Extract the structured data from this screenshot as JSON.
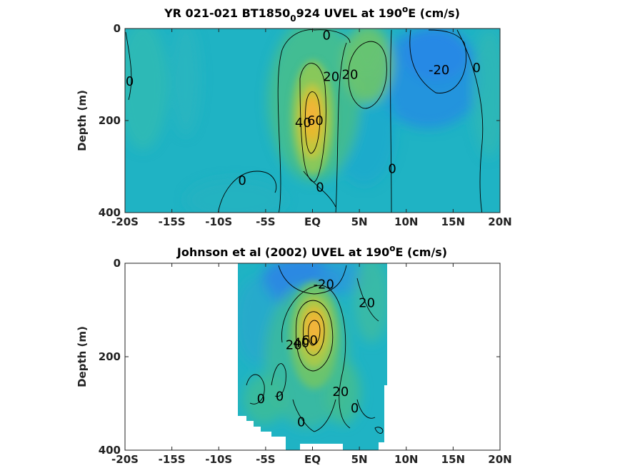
{
  "chart_data": [
    {
      "type": "contour",
      "title_main": "YR 021-021 BT1850",
      "title_sub": "0",
      "title_rest": "924 UVEL at 190",
      "title_sup": "o",
      "title_end": "E (cm/s)",
      "xlabel": "",
      "ylabel": "Depth (m)",
      "xlim": [
        -20,
        20
      ],
      "ylim": [
        0,
        400
      ],
      "y_reversed": true,
      "x_ticks": [
        -20,
        -15,
        -10,
        -5,
        0,
        5,
        10,
        15,
        20
      ],
      "x_tick_labels": [
        "-20S",
        "-15S",
        "-10S",
        "-5S",
        "EQ",
        "5N",
        "10N",
        "15N",
        "20N"
      ],
      "y_ticks": [
        0,
        200,
        400
      ],
      "y_tick_labels": [
        "0",
        "200",
        "400"
      ],
      "contour_labels": [
        {
          "text": "0",
          "x": 1.5,
          "y": 15
        },
        {
          "text": "20",
          "x": 2.0,
          "y": 105
        },
        {
          "text": "20",
          "x": 4.0,
          "y": 100
        },
        {
          "text": "-20",
          "x": 13.5,
          "y": 90
        },
        {
          "text": "0",
          "x": 17.5,
          "y": 85
        },
        {
          "text": "0",
          "x": -19.5,
          "y": 115
        },
        {
          "text": "40",
          "x": -1.0,
          "y": 205
        },
        {
          "text": "60",
          "x": 0.3,
          "y": 200
        },
        {
          "text": "0",
          "x": 8.5,
          "y": 305
        },
        {
          "text": "0",
          "x": -7.5,
          "y": 330
        },
        {
          "text": "0",
          "x": 0.8,
          "y": 345
        }
      ]
    },
    {
      "type": "contour",
      "title_main": "Johnson et al (2002) UVEL at 190",
      "title_sup": "o",
      "title_end": "E (cm/s)",
      "xlabel": "",
      "ylabel": "Depth (m)",
      "xlim": [
        -20,
        20
      ],
      "ylim": [
        0,
        400
      ],
      "y_reversed": true,
      "data_extent_x": [
        -8,
        8
      ],
      "x_ticks": [
        -20,
        -15,
        -10,
        -5,
        0,
        5,
        10,
        15,
        20
      ],
      "x_tick_labels": [
        "-20S",
        "-15S",
        "-10S",
        "-5S",
        "EQ",
        "5N",
        "10N",
        "15N",
        "20N"
      ],
      "y_ticks": [
        0,
        200,
        400
      ],
      "y_tick_labels": [
        "0",
        "200",
        "400"
      ],
      "contour_labels": [
        {
          "text": "-20",
          "x": 1.2,
          "y": 45
        },
        {
          "text": "20",
          "x": 5.8,
          "y": 85
        },
        {
          "text": "20",
          "x": -2.0,
          "y": 175
        },
        {
          "text": "40",
          "x": -1.2,
          "y": 170
        },
        {
          "text": "60",
          "x": -0.3,
          "y": 165
        },
        {
          "text": "20",
          "x": 3.0,
          "y": 275
        },
        {
          "text": "0",
          "x": -5.5,
          "y": 290
        },
        {
          "text": "0",
          "x": -3.5,
          "y": 285
        },
        {
          "text": "0",
          "x": 4.5,
          "y": 310
        },
        {
          "text": "0",
          "x": -1.2,
          "y": 340
        }
      ]
    }
  ]
}
